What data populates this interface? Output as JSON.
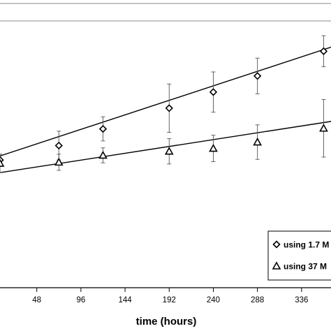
{
  "chart_data": {
    "type": "scatter",
    "title": "",
    "xlabel": "time (hours)",
    "ylabel": "",
    "xlim": [
      8,
      368
    ],
    "ylim": [
      0,
      100
    ],
    "x_ticks": [
      48,
      96,
      144,
      192,
      240,
      288,
      336
    ],
    "grid": false,
    "legend_position": "bottom-right",
    "series": [
      {
        "name": "using 1.7 M",
        "marker": "diamond",
        "color": "#000000",
        "points": [
          {
            "x": 8,
            "y": 44.4,
            "err": 2.0
          },
          {
            "x": 72,
            "y": 49.4,
            "err": 5.0
          },
          {
            "x": 120,
            "y": 55.2,
            "err": 4.2
          },
          {
            "x": 192,
            "y": 62.4,
            "err": 8.4
          },
          {
            "x": 240,
            "y": 68.0,
            "err": 7.0
          },
          {
            "x": 288,
            "y": 73.6,
            "err": 6.2
          },
          {
            "x": 360,
            "y": 82.2,
            "err": 5.4
          }
        ],
        "trendline": [
          [
            8,
            45.8
          ],
          [
            368,
            83.6
          ]
        ]
      },
      {
        "name": "using 37 M",
        "marker": "triangle",
        "color": "#000000",
        "points": [
          {
            "x": 8,
            "y": 43.2,
            "err": 3.2
          },
          {
            "x": 72,
            "y": 43.6,
            "err": 2.8
          },
          {
            "x": 120,
            "y": 46.0,
            "err": 2.6
          },
          {
            "x": 192,
            "y": 47.4,
            "err": 4.4
          },
          {
            "x": 240,
            "y": 48.4,
            "err": 4.6
          },
          {
            "x": 288,
            "y": 50.6,
            "err": 6.0
          },
          {
            "x": 360,
            "y": 55.4,
            "err": 10.0
          }
        ],
        "trendline": [
          [
            8,
            40.0
          ],
          [
            368,
            57.8
          ]
        ]
      }
    ]
  }
}
